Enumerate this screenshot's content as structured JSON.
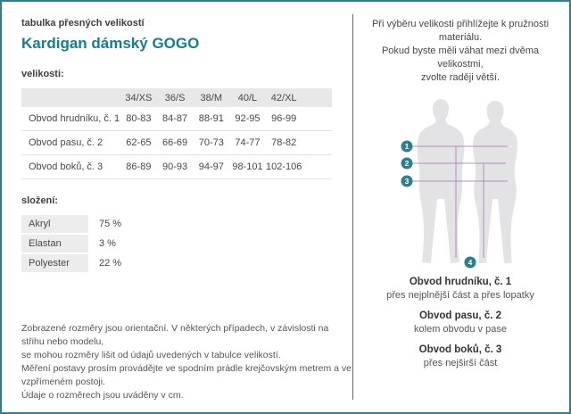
{
  "page": {
    "eyebrow": "tabulka přesných velikostí",
    "title": "Kardigan dámský GOGO"
  },
  "sizes": {
    "label": "velikosti:",
    "columns": [
      "34/XS",
      "36/S",
      "38/M",
      "40/L",
      "42/XL"
    ],
    "rows": [
      {
        "label": "Obvod hrudníku, č. 1",
        "values": [
          "80-83",
          "84-87",
          "88-91",
          "92-95",
          "96-99"
        ]
      },
      {
        "label": "Obvod pasu, č. 2",
        "values": [
          "62-65",
          "66-69",
          "70-73",
          "74-77",
          "78-82"
        ]
      },
      {
        "label": "Obvod boků, č. 3",
        "values": [
          "86-89",
          "90-93",
          "94-97",
          "98-101",
          "102-106"
        ]
      }
    ]
  },
  "composition": {
    "label": "složení:",
    "rows": [
      {
        "name": "Akryl",
        "value": "75 %"
      },
      {
        "name": "Elastan",
        "value": "3 %"
      },
      {
        "name": "Polyester",
        "value": "22 %"
      }
    ]
  },
  "disclaimer": {
    "lines": [
      "Zobrazené rozměry jsou orientační. V některých případech, v závislosti na střihu nebo modelu,",
      "se mohou rozměry lišit od údajů uvedených v tabulce velikostí.",
      "Měření postavy prosím provádějte ve spodním prádle krejčovským metrem a ve vzpřímeném postoji.",
      "Údaje o rozměrech jsou uváděny v cm."
    ]
  },
  "guide": {
    "intro_lines": [
      "Při výběru velikosti přihlížejte k pružnosti materiálu.",
      "Pokud byste měli váhat mezi dvěma velikostmi,",
      "zvolte raději větší."
    ],
    "markers": {
      "m1": "1",
      "m2": "2",
      "m3": "3",
      "m4": "4"
    },
    "legend": [
      {
        "title": "Obvod hrudníku, č. 1",
        "desc": "přes nejplnější část a přes lopatky"
      },
      {
        "title": "Obvod pasu, č. 2",
        "desc": "kolem obvodu v pase"
      },
      {
        "title": "Obvod boků, č. 3",
        "desc": "přes nejširší část"
      }
    ]
  },
  "colors": {
    "accent": "#2d7f8f",
    "title": "#1b7a8c",
    "measure_line": "#b48bba",
    "silhouette": "#e3e3e6",
    "table_header_bg": "#e8e8e8"
  }
}
